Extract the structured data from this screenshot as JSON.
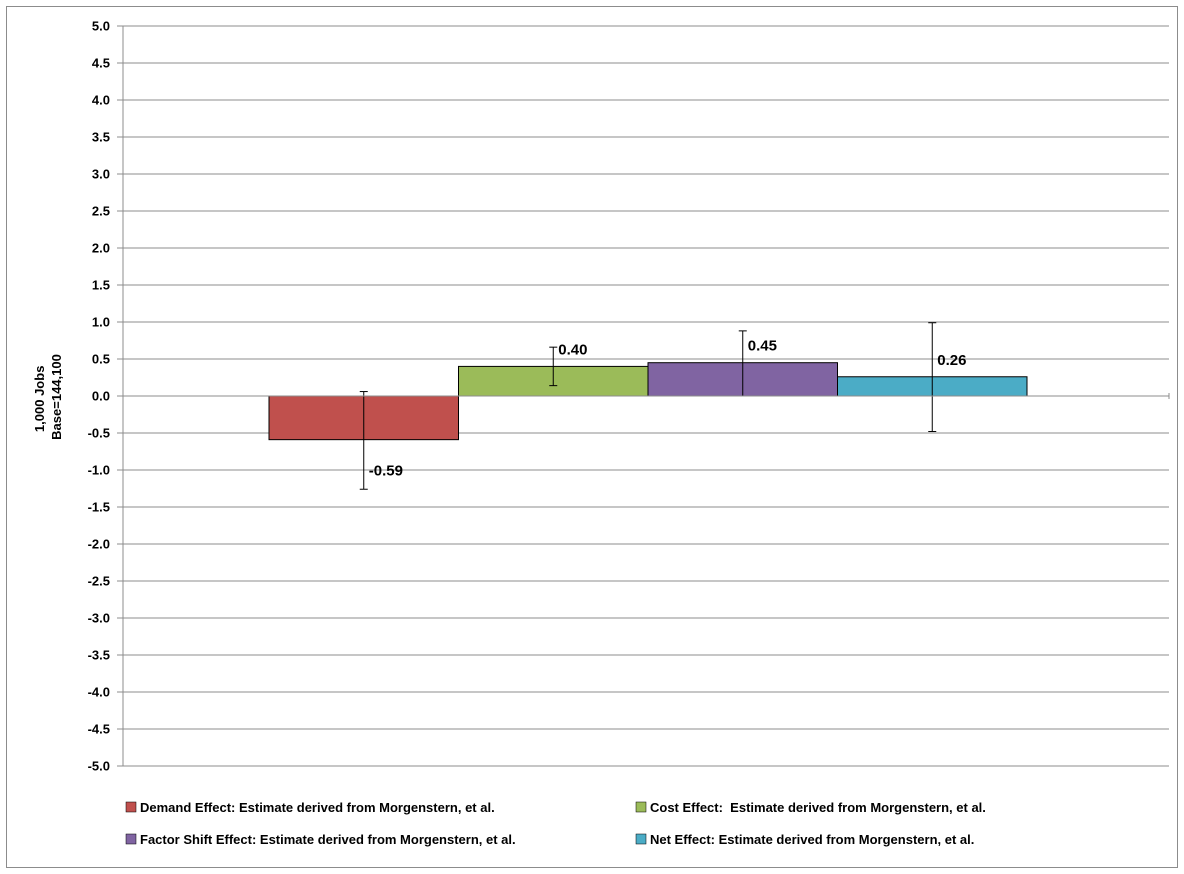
{
  "chart_data": {
    "type": "bar",
    "ylabel_lines": [
      "1,000 Jobs",
      "Base=144,100"
    ],
    "ylim": [
      -5.0,
      5.0
    ],
    "ytick_step": 0.5,
    "ytick_labels": [
      "5.0",
      "4.5",
      "4.0",
      "3.5",
      "3.0",
      "2.5",
      "2.0",
      "1.5",
      "1.0",
      "0.5",
      "0.0",
      "-0.5",
      "-1.0",
      "-1.5",
      "-2.0",
      "-2.5",
      "-3.0",
      "-3.5",
      "-4.0",
      "-4.5",
      "-5.0"
    ],
    "grid": true,
    "legend_position": "bottom",
    "series": [
      {
        "name": "Demand Effect: Estimate derived from Morgenstern, et al.",
        "value": -0.59,
        "label": "-0.59",
        "error_low": -1.26,
        "error_high": 0.06,
        "color": "#c0504d"
      },
      {
        "name": "Cost Effect:  Estimate derived from Morgenstern, et al.",
        "value": 0.4,
        "label": "0.40",
        "error_low": 0.14,
        "error_high": 0.66,
        "color": "#9bbb59"
      },
      {
        "name": "Factor Shift Effect: Estimate derived from Morgenstern, et al.",
        "value": 0.45,
        "label": "0.45",
        "error_low": 0.0,
        "error_high": 0.88,
        "color": "#8064a2"
      },
      {
        "name": "Net Effect: Estimate derived from Morgenstern, et al.",
        "value": 0.26,
        "label": "0.26",
        "error_low": -0.48,
        "error_high": 0.99,
        "color": "#4bacc6"
      }
    ]
  }
}
